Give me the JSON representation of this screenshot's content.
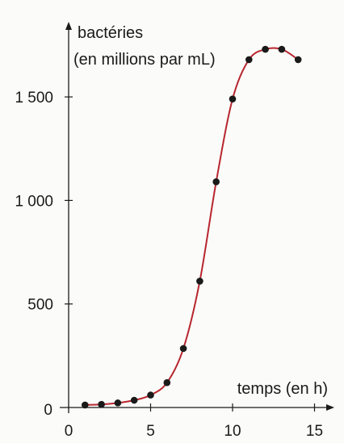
{
  "chart_data": {
    "type": "scatter",
    "title": "",
    "ylabel_line1": "bactéries",
    "ylabel_line2": "(en millions par mL)",
    "xlabel": "temps (en h)",
    "origin_label": "0",
    "xlim": [
      0,
      15
    ],
    "ylim": [
      0,
      1750
    ],
    "x_ticks": [
      0,
      5,
      10,
      15
    ],
    "x_tick_labels": [
      "0",
      "5",
      "10",
      "15"
    ],
    "y_ticks": [
      500,
      1000,
      1500
    ],
    "y_tick_labels": [
      "500",
      "1 000",
      "1 500"
    ],
    "grid": false,
    "legend": "none",
    "series": [
      {
        "x": [
          1,
          2,
          3,
          4,
          5,
          6,
          7,
          8,
          9,
          10,
          11,
          12,
          13,
          14
        ],
        "y": [
          12,
          15,
          22,
          35,
          60,
          120,
          285,
          610,
          1090,
          1490,
          1680,
          1730,
          1730,
          1680
        ]
      }
    ],
    "fit_curve": {
      "x": [
        1,
        2,
        3,
        4,
        5,
        6,
        7,
        8,
        9,
        10,
        11,
        12,
        13,
        14
      ],
      "y": [
        12,
        15,
        22,
        35,
        60,
        120,
        285,
        610,
        1090,
        1490,
        1680,
        1730,
        1730,
        1680
      ]
    },
    "colors": {
      "curve": "#b8262f",
      "points": "#1a1a1a",
      "axis": "#1a1a1a",
      "background": "#fbfbf9"
    }
  }
}
